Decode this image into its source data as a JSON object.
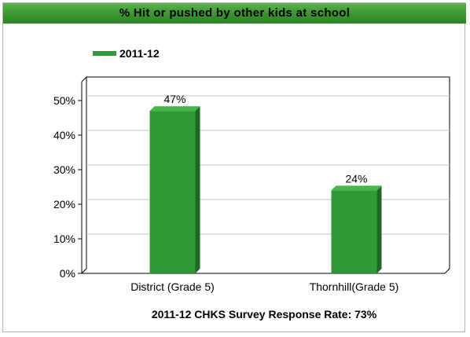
{
  "header": {
    "title": "% Hit or pushed by other kids at school"
  },
  "footer": {
    "caption": "2011-12 CHKS Survey Response Rate: 73%"
  },
  "colors": {
    "bar_front": "#2f9a35",
    "bar_side": "#1d6a22",
    "bar_top": "#49b44c",
    "title_bar": "#3c9632"
  },
  "chart_data": {
    "type": "bar",
    "title": "% Hit or pushed by other kids at school",
    "categories": [
      "District (Grade 5)",
      "Thornhill(Grade 5)"
    ],
    "series": [
      {
        "name": "2011-12",
        "values": [
          47,
          24
        ],
        "labels": [
          "47%",
          "24%"
        ]
      }
    ],
    "ylim": [
      0,
      50
    ],
    "yticks": [
      0,
      10,
      20,
      30,
      40,
      50
    ],
    "ytick_labels": [
      "0%",
      "10%",
      "20%",
      "30%",
      "40%",
      "50%"
    ],
    "xlabel": "",
    "ylabel": "",
    "grid": true,
    "legend_position": "top-left"
  }
}
